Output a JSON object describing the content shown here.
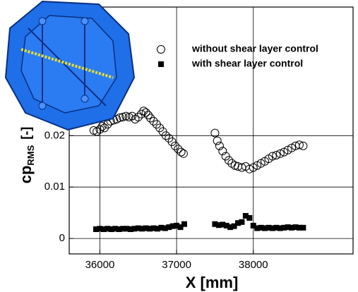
{
  "chart_data": {
    "type": "scatter",
    "xlabel": "X [mm]",
    "ylabel": {
      "text": "cp",
      "subscript": "RMS",
      "unit": "[-]"
    },
    "xlim": [
      35600,
      39300
    ],
    "xticks": [
      36000,
      37000,
      38000
    ],
    "ylim": [
      -0.003,
      0.045
    ],
    "yticks": [
      0,
      0.01,
      0.02
    ],
    "grid": true,
    "legend": "upper right",
    "series": [
      {
        "name": "without shear layer control",
        "marker": "open-circle",
        "color": "#000000",
        "x": [
          35920,
          35960,
          36000,
          36030,
          36060,
          36100,
          36140,
          36180,
          36220,
          36260,
          36300,
          36340,
          36380,
          36420,
          36460,
          36500,
          36540,
          36570,
          36600,
          36630,
          36660,
          36700,
          36740,
          36780,
          36820,
          36860,
          36900,
          36940,
          36980,
          37020,
          37060,
          37090,
          37500,
          37530,
          37560,
          37600,
          37640,
          37680,
          37720,
          37760,
          37800,
          37850,
          37900,
          37950,
          38000,
          38050,
          38100,
          38150,
          38200,
          38250,
          38300,
          38350,
          38400,
          38450,
          38500,
          38550,
          38600,
          38650
        ],
        "values": [
          0.021,
          0.0208,
          0.0212,
          0.0218,
          0.0215,
          0.0222,
          0.0228,
          0.023,
          0.0232,
          0.0235,
          0.0236,
          0.0238,
          0.0236,
          0.0238,
          0.0232,
          0.0236,
          0.0242,
          0.0248,
          0.0245,
          0.024,
          0.0234,
          0.0228,
          0.0222,
          0.0215,
          0.0208,
          0.02,
          0.0195,
          0.0188,
          0.018,
          0.0174,
          0.0168,
          0.0165,
          0.0205,
          0.019,
          0.018,
          0.017,
          0.016,
          0.0152,
          0.0146,
          0.0142,
          0.014,
          0.0138,
          0.014,
          0.0135,
          0.0138,
          0.0142,
          0.0146,
          0.015,
          0.0155,
          0.016,
          0.0162,
          0.0165,
          0.0168,
          0.0172,
          0.0176,
          0.018,
          0.0182,
          0.018
        ]
      },
      {
        "name": "with shear layer control",
        "marker": "filled-square",
        "color": "#000000",
        "x": [
          35950,
          36000,
          36050,
          36100,
          36150,
          36200,
          36250,
          36300,
          36350,
          36400,
          36450,
          36500,
          36550,
          36600,
          36650,
          36700,
          36750,
          36800,
          36850,
          36900,
          36950,
          37000,
          37050,
          37100,
          37500,
          37550,
          37600,
          37650,
          37700,
          37750,
          37800,
          37850,
          37900,
          37950,
          38000,
          38050,
          38100,
          38150,
          38200,
          38250,
          38300,
          38350,
          38400,
          38450,
          38500,
          38550,
          38600,
          38650
        ],
        "values": [
          0.0018,
          0.0019,
          0.0018,
          0.0019,
          0.0018,
          0.0019,
          0.0018,
          0.0019,
          0.0019,
          0.0018,
          0.0019,
          0.002,
          0.0019,
          0.002,
          0.0019,
          0.002,
          0.0019,
          0.0021,
          0.002,
          0.0022,
          0.0024,
          0.0025,
          0.0022,
          0.0028,
          0.0028,
          0.0026,
          0.0027,
          0.0025,
          0.0022,
          0.0024,
          0.003,
          0.0032,
          0.0044,
          0.004,
          0.0025,
          0.002,
          0.0021,
          0.002,
          0.0021,
          0.002,
          0.0021,
          0.002,
          0.0021,
          0.0022,
          0.0021,
          0.0022,
          0.0021,
          0.0021
        ]
      }
    ]
  }
}
